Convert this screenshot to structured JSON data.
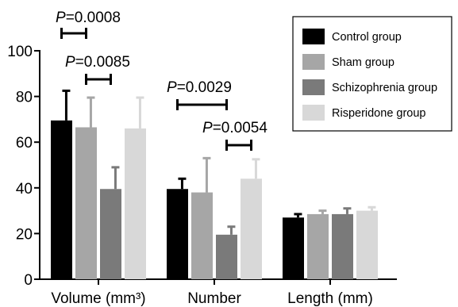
{
  "chart_data": {
    "type": "bar",
    "categories": [
      "Volume (mm³)",
      "Number",
      "Length (mm)"
    ],
    "series": [
      {
        "name": "Control group",
        "color": "#000000",
        "values": [
          69.5,
          39.5,
          27
        ],
        "errors": [
          13,
          4.5,
          1.5
        ]
      },
      {
        "name": "Sham group",
        "color": "#a6a6a6",
        "values": [
          66.5,
          38,
          28.5
        ],
        "errors": [
          13,
          15,
          1.5
        ]
      },
      {
        "name": "Schizophrenia group",
        "color": "#7a7a7a",
        "values": [
          39.5,
          19.5,
          28.5
        ],
        "errors": [
          9.5,
          3.5,
          2.5
        ]
      },
      {
        "name": "Risperidone group",
        "color": "#d8d8d8",
        "values": [
          66,
          44,
          30
        ],
        "errors": [
          13.5,
          8.5,
          1.5
        ]
      }
    ],
    "ylim": [
      0,
      100
    ],
    "yticks": [
      "0",
      "20",
      "40",
      "60",
      "80",
      "100"
    ],
    "legend_position": "top-right",
    "annotations": [
      {
        "label_italic": "P",
        "label_rest": "=0.0008",
        "category": 0,
        "from_series": 0,
        "to_series": 1
      },
      {
        "label_italic": "P",
        "label_rest": "=0.0085",
        "category": 0,
        "from_series": 1,
        "to_series": 2
      },
      {
        "label_italic": "P",
        "label_rest": "=0.0029",
        "category": 1,
        "from_series": 0,
        "to_series": 2
      },
      {
        "label_italic": "P",
        "label_rest": "=0.0054",
        "category": 1,
        "from_series": 2,
        "to_series": 3
      }
    ]
  }
}
